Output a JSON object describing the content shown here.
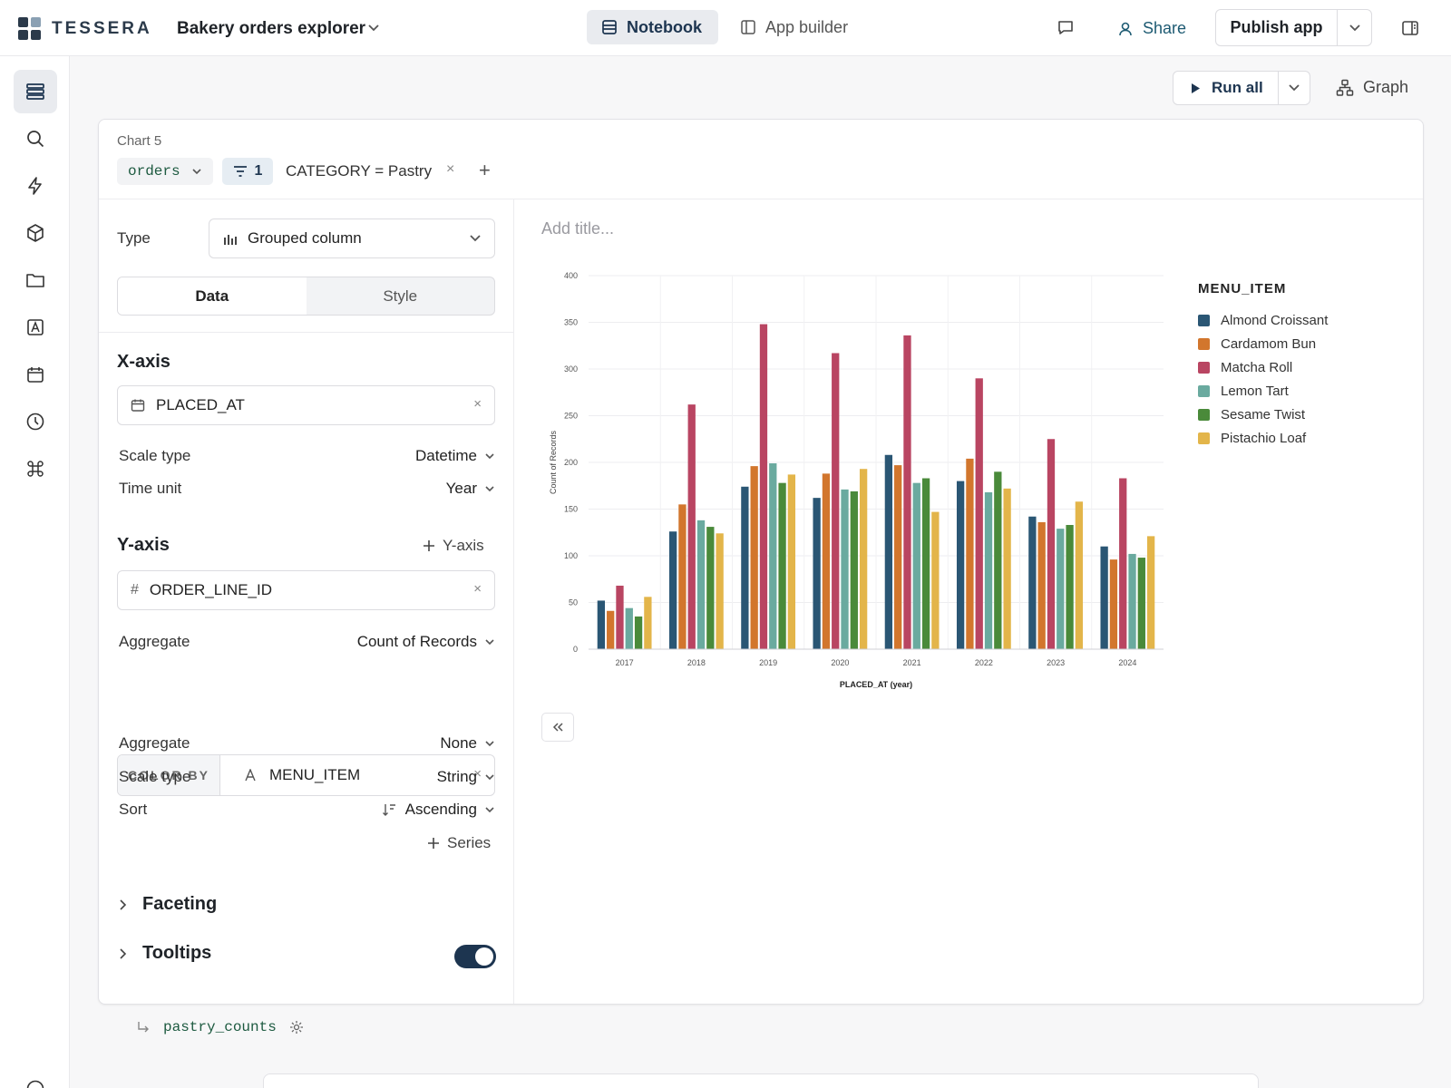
{
  "app": {
    "brand": "TESSERA",
    "notebook_title": "Bakery orders explorer"
  },
  "header": {
    "tabs": [
      {
        "label": "Notebook"
      },
      {
        "label": "App builder"
      }
    ],
    "share_label": "Share",
    "publish_label": "Publish app"
  },
  "toolbar": {
    "run_all_label": "Run all",
    "graph_label": "Graph"
  },
  "cell": {
    "name": "Chart 5",
    "source": "orders",
    "filter_count": "1",
    "filter_text": "CATEGORY = Pastry",
    "filter_remove": "×",
    "filter_add": "+",
    "output_name": "pastry_counts"
  },
  "config": {
    "type_label": "Type",
    "type_value": "Grouped column",
    "tabs": {
      "data": "Data",
      "style": "Style"
    },
    "xaxis": {
      "heading": "X-axis",
      "field": "PLACED_AT",
      "scale_label": "Scale type",
      "scale_value": "Datetime",
      "unit_label": "Time unit",
      "unit_value": "Year"
    },
    "yaxis": {
      "heading": "Y-axis",
      "add_label": "Y-axis",
      "field_icon": "#",
      "field": "ORDER_LINE_ID",
      "agg_label": "Aggregate",
      "agg_value": "Count of Records"
    },
    "colorby": {
      "tag": "COLOR BY",
      "field": "MENU_ITEM",
      "agg_label": "Aggregate",
      "agg_value": "None",
      "scale_label": "Scale type",
      "scale_value": "String",
      "sort_label": "Sort",
      "sort_value": "Ascending",
      "add_series": "Series"
    },
    "faceting": "Faceting",
    "tooltips": "Tooltips",
    "tooltips_on": true,
    "remove_glyph": "×"
  },
  "chart_panel": {
    "title_placeholder": "Add title..."
  },
  "chart_data": {
    "type": "bar",
    "xlabel": "PLACED_AT (year)",
    "ylabel": "Count of Records",
    "ylim": [
      0,
      400
    ],
    "yticks": [
      0,
      50,
      100,
      150,
      200,
      250,
      300,
      350,
      400
    ],
    "categories": [
      "2017",
      "2018",
      "2019",
      "2020",
      "2021",
      "2022",
      "2023",
      "2024"
    ],
    "legend_title": "MENU_ITEM",
    "legend_position": "right",
    "series": [
      {
        "name": "Almond Croissant",
        "color": "#2a5674",
        "values": [
          52,
          126,
          174,
          162,
          208,
          180,
          142,
          110
        ]
      },
      {
        "name": "Cardamom Bun",
        "color": "#d2762d",
        "values": [
          41,
          155,
          196,
          188,
          197,
          204,
          136,
          96
        ]
      },
      {
        "name": "Matcha Roll",
        "color": "#b94562",
        "values": [
          68,
          262,
          348,
          317,
          336,
          290,
          225,
          183
        ]
      },
      {
        "name": "Lemon Tart",
        "color": "#6aaa9f",
        "values": [
          44,
          138,
          199,
          171,
          178,
          168,
          129,
          102
        ]
      },
      {
        "name": "Sesame Twist",
        "color": "#4a8a3a",
        "values": [
          35,
          131,
          178,
          169,
          183,
          190,
          133,
          98
        ]
      },
      {
        "name": "Pistachio Loaf",
        "color": "#e3b54a",
        "values": [
          56,
          124,
          187,
          193,
          147,
          172,
          158,
          121
        ]
      }
    ]
  },
  "colors": {
    "accent": "#1d3550",
    "link": "#1d5a72"
  }
}
